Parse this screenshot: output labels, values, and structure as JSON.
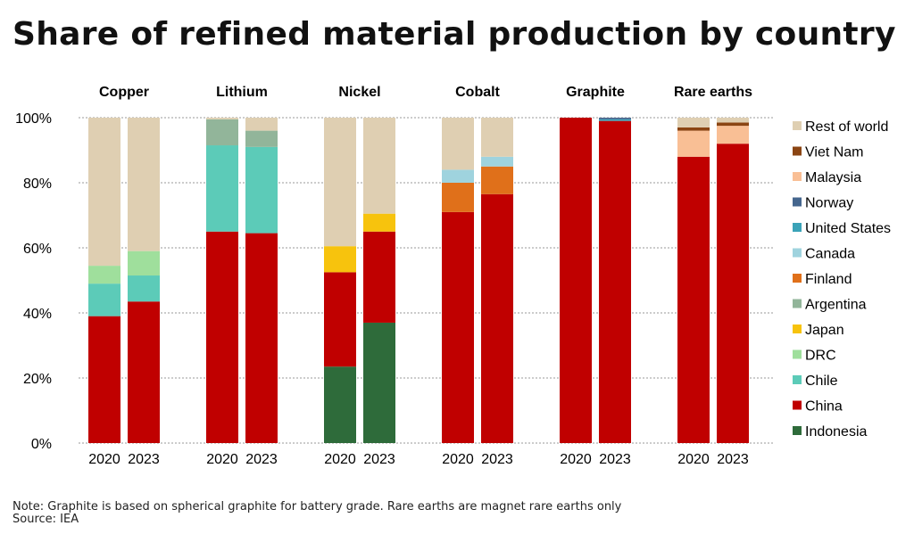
{
  "title": "Share of refined material production by country",
  "note": "Note: Graphite is based on spherical graphite for battery grade. Rare earths are magnet rare earths only",
  "source": "Source: IEA",
  "chart_data": {
    "type": "bar",
    "stacked": true,
    "grouped_by": "material",
    "title": "Share of refined material production by country",
    "ylim": [
      0,
      100
    ],
    "yticks": [
      "0%",
      "20%",
      "40%",
      "60%",
      "80%",
      "100%"
    ],
    "grid": true,
    "legend_position": "right",
    "stack_order": [
      "Indonesia",
      "China",
      "Chile",
      "DRC",
      "Japan",
      "Argentina",
      "Finland",
      "Canada",
      "United States",
      "Norway",
      "Malaysia",
      "Viet Nam",
      "Rest of world"
    ],
    "legend": [
      {
        "name": "Rest of world",
        "color": "#dfcfb2"
      },
      {
        "name": "Viet Nam",
        "color": "#8b4513"
      },
      {
        "name": "Malaysia",
        "color": "#f9bf95"
      },
      {
        "name": "Norway",
        "color": "#45668e"
      },
      {
        "name": "United States",
        "color": "#3ba3b8"
      },
      {
        "name": "Canada",
        "color": "#9fd3de"
      },
      {
        "name": "Finland",
        "color": "#e0701a"
      },
      {
        "name": "Argentina",
        "color": "#92b59a"
      },
      {
        "name": "Japan",
        "color": "#f7c30d"
      },
      {
        "name": "DRC",
        "color": "#9fdf9c"
      },
      {
        "name": "Chile",
        "color": "#5ccbb8"
      },
      {
        "name": "China",
        "color": "#c00000"
      },
      {
        "name": "Indonesia",
        "color": "#2e6b3a"
      }
    ],
    "groups": [
      {
        "name": "Copper",
        "bars": [
          {
            "year": "2020",
            "values": {
              "China": 39,
              "Chile": 10,
              "DRC": 5.5,
              "Rest of world": 45.5
            }
          },
          {
            "year": "2023",
            "values": {
              "China": 43.5,
              "Chile": 8,
              "DRC": 7.5,
              "Rest of world": 41
            }
          }
        ]
      },
      {
        "name": "Lithium",
        "bars": [
          {
            "year": "2020",
            "values": {
              "China": 65,
              "Chile": 26.5,
              "Argentina": 8,
              "Rest of world": 0.5
            }
          },
          {
            "year": "2023",
            "values": {
              "China": 64.5,
              "Chile": 26.5,
              "Argentina": 5,
              "Rest of world": 4
            }
          }
        ]
      },
      {
        "name": "Nickel",
        "bars": [
          {
            "year": "2020",
            "values": {
              "Indonesia": 23.5,
              "China": 29,
              "Japan": 8,
              "Rest of world": 39.5
            }
          },
          {
            "year": "2023",
            "values": {
              "Indonesia": 37,
              "China": 28,
              "Japan": 5.5,
              "Rest of world": 29.5
            }
          }
        ]
      },
      {
        "name": "Cobalt",
        "bars": [
          {
            "year": "2020",
            "values": {
              "China": 71,
              "Finland": 9,
              "Canada": 4,
              "Rest of world": 16
            }
          },
          {
            "year": "2023",
            "values": {
              "China": 76.5,
              "Finland": 8.5,
              "Canada": 3,
              "Rest of world": 12
            }
          }
        ]
      },
      {
        "name": "Graphite",
        "bars": [
          {
            "year": "2020",
            "values": {
              "China": 100
            }
          },
          {
            "year": "2023",
            "values": {
              "China": 99,
              "United States": 0.5,
              "Norway": 0.5
            }
          }
        ]
      },
      {
        "name": "Rare earths",
        "bars": [
          {
            "year": "2020",
            "values": {
              "China": 88,
              "Malaysia": 8,
              "Viet Nam": 1,
              "Rest of world": 3
            }
          },
          {
            "year": "2023",
            "values": {
              "China": 92,
              "Malaysia": 5.5,
              "Viet Nam": 1,
              "Rest of world": 1.5
            }
          }
        ]
      }
    ]
  }
}
